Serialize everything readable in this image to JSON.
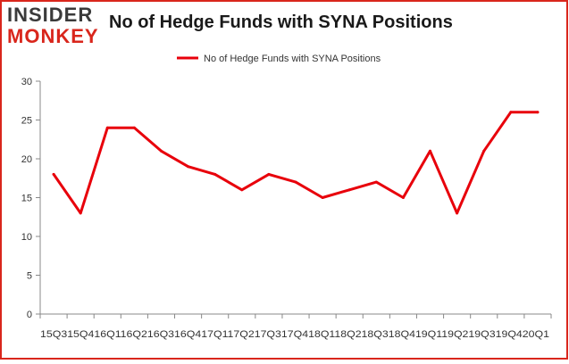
{
  "logo": {
    "line1": "INSIDER",
    "line2": "MONKEY"
  },
  "colors": {
    "series": "#e8000b",
    "border": "#d9261c",
    "axis": "#888888",
    "text": "#333333"
  },
  "chart_data": {
    "type": "line",
    "title": "No of Hedge Funds with SYNA Positions",
    "categories": [
      "2015Q3",
      "2015Q4",
      "2016Q1",
      "2016Q2",
      "2016Q3",
      "2016Q4",
      "2017Q1",
      "2017Q2",
      "2017Q3",
      "2017Q4",
      "2018Q1",
      "2018Q2",
      "2018Q3",
      "2018Q4",
      "2019Q1",
      "2019Q2",
      "2019Q3",
      "2019Q4",
      "2020Q1"
    ],
    "x_tick_text": "15Q315Q416Q116Q216Q316Q417Q117Q217Q317Q418Q118Q218Q318Q419Q119Q219Q319Q420Q1",
    "series": [
      {
        "name": "No of Hedge Funds with SYNA Positions",
        "values": [
          18,
          13,
          24,
          24,
          21,
          19,
          18,
          16,
          18,
          17,
          15,
          16,
          17,
          15,
          21,
          13,
          21,
          26,
          26
        ]
      }
    ],
    "ylim": [
      0,
      30
    ],
    "yticks": [
      0,
      5,
      10,
      15,
      20,
      25,
      30
    ],
    "grid": false,
    "legend": "top-center"
  }
}
